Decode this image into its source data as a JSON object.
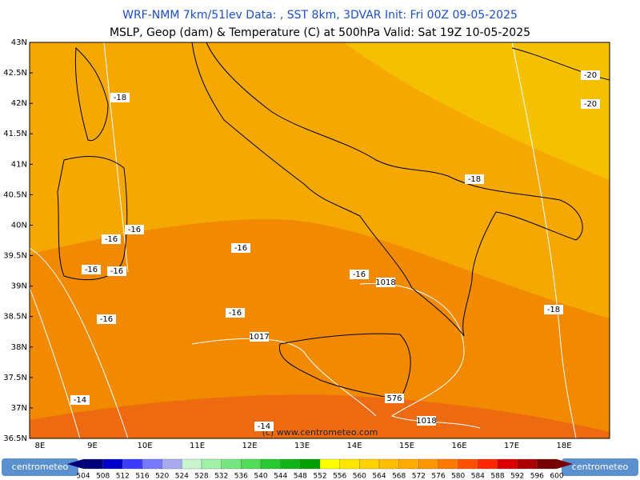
{
  "header": {
    "title_line1": "WRF-NMM 7km/51lev   Data: , SST 8km, 3DVAR   Init: Fri 00Z 09-05-2025",
    "title_line2": "MSLP, Geop (dam) & Temperature (C) at 500hPa   Valid: Sat 19Z 10-05-2025"
  },
  "map": {
    "lat_labels": [
      "43N",
      "42.5N",
      "42N",
      "41.5N",
      "41N",
      "40.5N",
      "40N",
      "39.5N",
      "39N",
      "38.5N",
      "38N",
      "37.5N",
      "37N",
      "36.5N"
    ],
    "lon_labels": [
      "8E",
      "9E",
      "10E",
      "11E",
      "12E",
      "13E",
      "14E",
      "15E",
      "16E",
      "17E",
      "18E"
    ],
    "contour_labels": [
      "-20",
      "-20",
      "-18",
      "-18",
      "-16",
      "-16",
      "-16",
      "-16",
      "-16",
      "-16",
      "-16",
      "-16",
      "1018",
      "-18",
      "1017",
      "576",
      "1018",
      "-14",
      "-14"
    ],
    "copyright": "(c) www.centrometeo.com"
  },
  "colorbar": {
    "labels": [
      504,
      508,
      512,
      516,
      520,
      524,
      528,
      532,
      536,
      540,
      544,
      548,
      552,
      556,
      560,
      564,
      568,
      572,
      576,
      580,
      584,
      588,
      592,
      596,
      600
    ],
    "colors": [
      "#00007a",
      "#0000c8",
      "#3c3cff",
      "#7878ff",
      "#a8a8f0",
      "#c8f5d0",
      "#a0f0a8",
      "#78e680",
      "#50dc58",
      "#28c830",
      "#10b418",
      "#00a000",
      "#ffff00",
      "#ffe600",
      "#ffd200",
      "#ffbe00",
      "#ffaa00",
      "#ff9600",
      "#ff7800",
      "#ff5000",
      "#ff2800",
      "#dc0000",
      "#aa0000",
      "#780000"
    ],
    "logo": "centrometeo"
  }
}
